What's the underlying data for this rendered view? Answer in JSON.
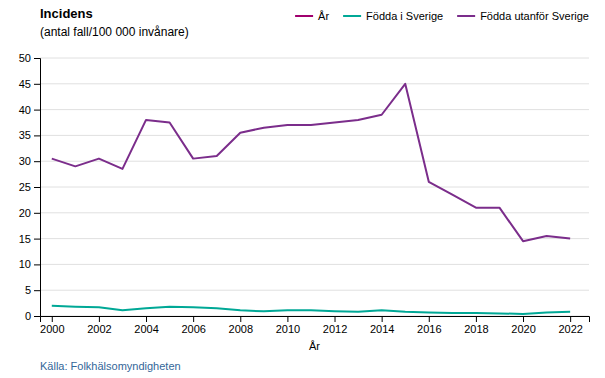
{
  "chart_data": {
    "type": "line",
    "title": "Incidens",
    "subtitle": "(antal fall/100 000 invånare)",
    "x_label": "År",
    "annotations": [
      {
        "text": "Källa: Folkhälsomyndigheten",
        "color": "#336699"
      }
    ],
    "x": [
      2000,
      2001,
      2002,
      2003,
      2004,
      2005,
      2006,
      2007,
      2008,
      2009,
      2010,
      2011,
      2012,
      2013,
      2014,
      2015,
      2016,
      2017,
      2018,
      2019,
      2020,
      2021,
      2022
    ],
    "series": [
      {
        "name": "År",
        "color": "#a0006e",
        "values": [
          null,
          null,
          null,
          null,
          null,
          null,
          null,
          null,
          null,
          null,
          null,
          null,
          null,
          null,
          null,
          null,
          null,
          null,
          null,
          null,
          null,
          null,
          null
        ]
      },
      {
        "name": "Födda i Sverige",
        "color": "#00a896",
        "values": [
          2.0,
          1.8,
          1.7,
          1.1,
          1.5,
          1.8,
          1.7,
          1.5,
          1.1,
          0.9,
          1.1,
          1.1,
          0.9,
          0.8,
          1.1,
          0.8,
          0.7,
          0.6,
          0.6,
          0.5,
          0.4,
          0.7,
          0.8
        ]
      },
      {
        "name": "Födda utanför Sverige",
        "color": "#7b2d8b",
        "values": [
          30.5,
          29.0,
          30.5,
          28.5,
          38.0,
          37.5,
          30.5,
          31.0,
          35.5,
          36.5,
          37.0,
          37.0,
          37.5,
          38.0,
          39.0,
          45.0,
          26.0,
          23.5,
          21.0,
          21.0,
          14.5,
          15.5,
          15.0
        ]
      }
    ],
    "xlim": [
      1999.5,
      2022.8
    ],
    "xticks": [
      2000,
      2002,
      2004,
      2006,
      2008,
      2010,
      2012,
      2014,
      2016,
      2018,
      2020,
      2022
    ],
    "ylim": [
      0,
      50
    ],
    "yticks": [
      0,
      5,
      10,
      15,
      20,
      25,
      30,
      35,
      40,
      45,
      50
    ],
    "grid": true,
    "legend": "top"
  }
}
